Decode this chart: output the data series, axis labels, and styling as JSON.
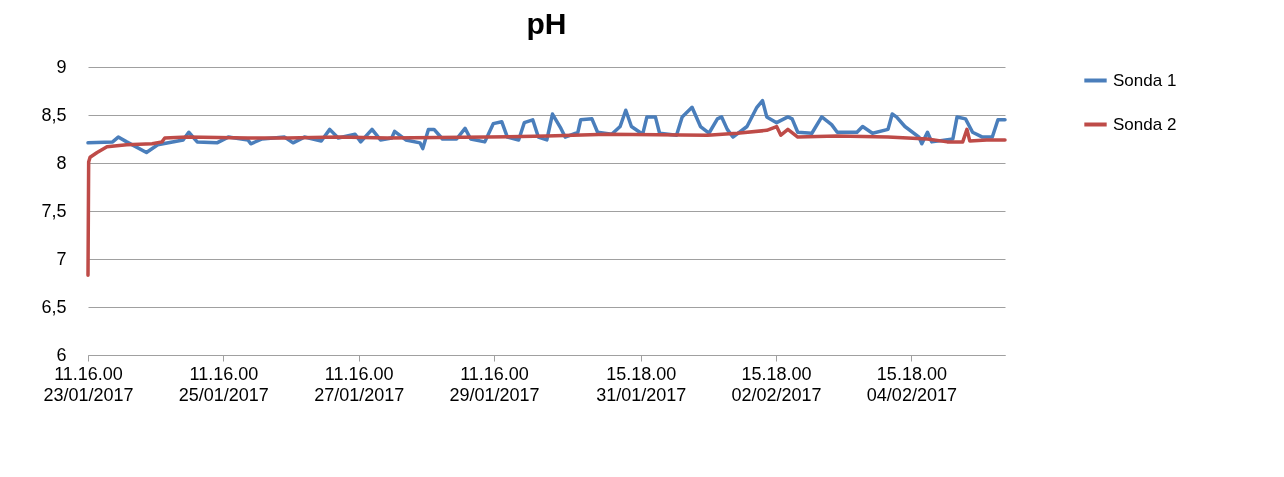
{
  "chart_data": {
    "type": "line",
    "title": "pH",
    "xlim": [
      "2017-01-23T11:16",
      "2017-02-06T00:30"
    ],
    "xticks": [
      {
        "value": "2017-01-23T11:16",
        "label": "11.16.00\n23/01/2017"
      },
      {
        "value": "2017-01-25T11:16",
        "label": "11.16.00\n25/01/2017"
      },
      {
        "value": "2017-01-27T11:16",
        "label": "11.16.00\n27/01/2017"
      },
      {
        "value": "2017-01-29T11:16",
        "label": "11.16.00\n29/01/2017"
      },
      {
        "value": "2017-01-31T15:18",
        "label": "15.18.00\n31/01/2017"
      },
      {
        "value": "2017-02-02T15:18",
        "label": "15.18.00\n02/02/2017"
      },
      {
        "value": "2017-02-04T15:18",
        "label": "15.18.00\n04/02/2017"
      }
    ],
    "ylim": [
      6,
      9
    ],
    "yticks": [
      6,
      {
        "value": 6.5,
        "label": "6,5"
      },
      7,
      {
        "value": 7.5,
        "label": "7,5"
      },
      8,
      {
        "value": 8.5,
        "label": "8,5"
      },
      9
    ],
    "grid": "y",
    "legend": "right",
    "marker": "none",
    "line_style": "solid",
    "series": [
      {
        "name": "Sonda 1",
        "color": "#4a7ebb",
        "x": [
          "2017-01-23T11:16",
          "2017-01-23T20:00",
          "2017-01-23T22:00",
          "2017-01-24T01:00",
          "2017-01-24T08:00",
          "2017-01-24T12:00",
          "2017-01-24T21:00",
          "2017-01-24T23:00",
          "2017-01-25T02:00",
          "2017-01-25T09:00",
          "2017-01-25T13:00",
          "2017-01-25T20:00",
          "2017-01-25T21:00",
          "2017-01-26T01:00",
          "2017-01-26T09:00",
          "2017-01-26T12:00",
          "2017-01-26T16:00",
          "2017-01-26T22:00",
          "2017-01-27T01:00",
          "2017-01-27T04:00",
          "2017-01-27T10:00",
          "2017-01-27T12:00",
          "2017-01-27T16:00",
          "2017-01-27T19:00",
          "2017-01-27T23:00",
          "2017-01-28T00:00",
          "2017-01-28T04:00",
          "2017-01-28T09:00",
          "2017-01-28T10:00",
          "2017-01-28T12:00",
          "2017-01-28T14:00",
          "2017-01-28T17:00",
          "2017-01-28T22:00",
          "2017-01-29T01:00",
          "2017-01-29T03:00",
          "2017-01-29T08:00",
          "2017-01-29T11:00",
          "2017-01-29T14:00",
          "2017-01-29T16:00",
          "2017-01-29T20:00",
          "2017-01-29T22:00",
          "2017-01-30T01:00",
          "2017-01-30T03:00",
          "2017-01-30T06:00",
          "2017-01-30T08:00",
          "2017-01-30T11:00",
          "2017-01-30T12:30",
          "2017-01-30T17:00",
          "2017-01-30T18:00",
          "2017-01-30T22:00",
          "2017-01-31T00:00",
          "2017-01-31T05:00",
          "2017-01-31T08:00",
          "2017-01-31T10:00",
          "2017-01-31T12:00",
          "2017-01-31T16:00",
          "2017-01-31T17:30",
          "2017-01-31T20:30",
          "2017-01-31T22:00",
          "2017-02-01T04:00",
          "2017-02-01T06:00",
          "2017-02-01T09:30",
          "2017-02-01T12:30",
          "2017-02-01T15:30",
          "2017-02-01T18:30",
          "2017-02-01T20:00",
          "2017-02-01T22:00",
          "2017-02-02T00:00",
          "2017-02-02T05:00",
          "2017-02-02T08:30",
          "2017-02-02T10:30",
          "2017-02-02T12:00",
          "2017-02-02T15:30",
          "2017-02-02T19:30",
          "2017-02-02T21:00",
          "2017-02-02T23:00",
          "2017-02-03T04:00",
          "2017-02-03T07:30",
          "2017-02-03T11:00",
          "2017-02-03T13:00",
          "2017-02-03T20:00",
          "2017-02-03T22:00",
          "2017-02-04T01:30",
          "2017-02-04T07:00",
          "2017-02-04T08:30",
          "2017-02-04T10:00",
          "2017-02-04T13:00",
          "2017-02-04T18:00",
          "2017-02-04T19:00",
          "2017-02-04T21:00",
          "2017-02-04T22:30",
          "2017-02-05T06:00",
          "2017-02-05T07:30",
          "2017-02-05T10:30",
          "2017-02-05T13:00",
          "2017-02-05T16:30",
          "2017-02-05T20:00",
          "2017-02-05T22:00",
          "2017-02-06T00:30"
        ],
        "values": [
          8.21,
          8.22,
          8.27,
          8.22,
          8.11,
          8.19,
          8.24,
          8.32,
          8.22,
          8.21,
          8.27,
          8.24,
          8.2,
          8.25,
          8.27,
          8.21,
          8.27,
          8.23,
          8.35,
          8.26,
          8.3,
          8.22,
          8.35,
          8.24,
          8.26,
          8.33,
          8.24,
          8.21,
          8.15,
          8.35,
          8.35,
          8.25,
          8.25,
          8.36,
          8.25,
          8.22,
          8.41,
          8.43,
          8.27,
          8.24,
          8.42,
          8.45,
          8.27,
          8.24,
          8.51,
          8.36,
          8.27,
          8.32,
          8.45,
          8.46,
          8.32,
          8.3,
          8.38,
          8.55,
          8.38,
          8.3,
          8.48,
          8.48,
          8.31,
          8.29,
          8.48,
          8.58,
          8.38,
          8.31,
          8.46,
          8.48,
          8.35,
          8.27,
          8.38,
          8.58,
          8.65,
          8.48,
          8.42,
          8.48,
          8.46,
          8.32,
          8.31,
          8.48,
          8.4,
          8.32,
          8.32,
          8.38,
          8.31,
          8.35,
          8.51,
          8.48,
          8.38,
          8.27,
          8.2,
          8.32,
          8.22,
          8.25,
          8.48,
          8.46,
          8.32,
          8.27,
          8.27,
          8.45,
          8.45
        ]
      },
      {
        "name": "Sonda 2",
        "color": "#be4b48",
        "x": [
          "2017-01-23T11:16",
          "2017-01-23T11:30",
          "2017-01-23T12:00",
          "2017-01-23T14:30",
          "2017-01-23T18:00",
          "2017-01-24T01:00",
          "2017-01-24T10:00",
          "2017-01-24T13:30",
          "2017-01-24T14:30",
          "2017-01-24T22:30",
          "2017-01-25T20:00",
          "2017-01-26T10:00",
          "2017-01-27T04:00",
          "2017-01-27T21:30",
          "2017-01-29T09:00",
          "2017-01-30T06:00",
          "2017-01-31T03:30",
          "2017-02-01T15:00",
          "2017-02-02T01:30",
          "2017-02-02T12:00",
          "2017-02-02T15:30",
          "2017-02-02T17:00",
          "2017-02-02T19:30",
          "2017-02-02T23:00",
          "2017-02-03T13:00",
          "2017-02-04T07:00",
          "2017-02-04T21:00",
          "2017-02-05T04:00",
          "2017-02-05T09:30",
          "2017-02-05T11:00",
          "2017-02-05T12:00",
          "2017-02-05T18:00",
          "2017-02-06T00:30"
        ],
        "values": [
          6.83,
          8.01,
          8.06,
          8.11,
          8.17,
          8.19,
          8.2,
          8.22,
          8.26,
          8.27,
          8.26,
          8.26,
          8.27,
          8.26,
          8.27,
          8.28,
          8.3,
          8.29,
          8.31,
          8.34,
          8.38,
          8.29,
          8.35,
          8.27,
          8.28,
          8.27,
          8.25,
          8.22,
          8.22,
          8.35,
          8.23,
          8.24,
          8.24
        ]
      }
    ]
  }
}
